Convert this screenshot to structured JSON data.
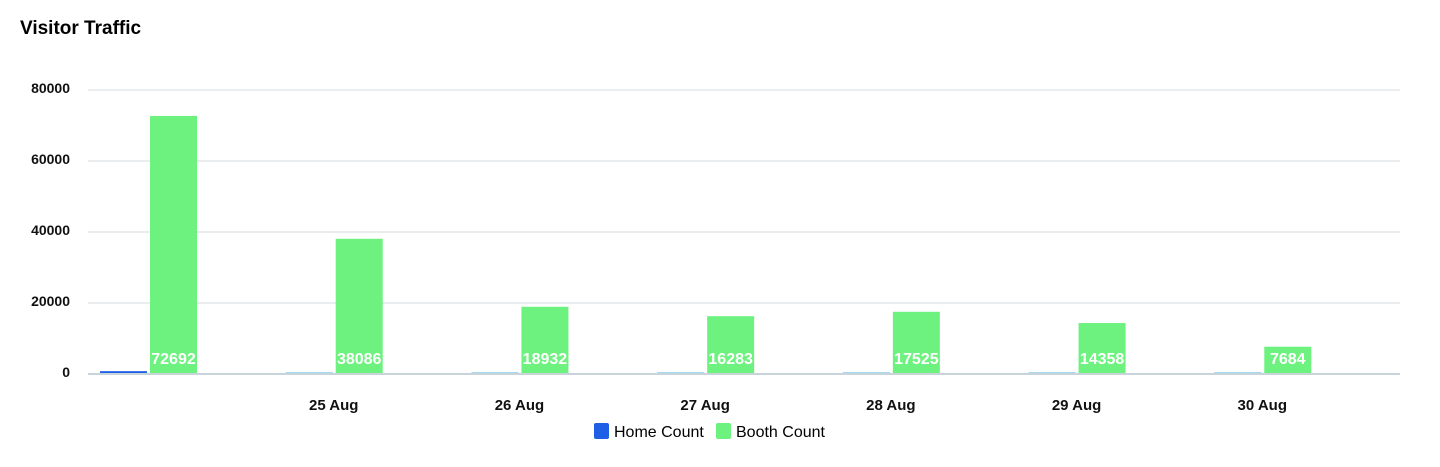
{
  "chart_data": {
    "type": "bar",
    "title": "Visitor Traffic",
    "categories": [
      "",
      "25 Aug",
      "26 Aug",
      "27 Aug",
      "28 Aug",
      "29 Aug",
      "30 Aug"
    ],
    "series": [
      {
        "name": "Home Count",
        "color": "#1f5fe6",
        "values": [
          800,
          400,
          300,
          200,
          250,
          200,
          150
        ]
      },
      {
        "name": "Booth Count",
        "color": "#6ef27f",
        "values": [
          72692,
          38086,
          18932,
          16283,
          17525,
          14358,
          7684
        ]
      }
    ],
    "data_labels": [
      "72692",
      "38086",
      "18932",
      "16283",
      "17525",
      "14358",
      "7684"
    ],
    "y_ticks": [
      "0",
      "20000",
      "40000",
      "60000",
      "80000"
    ],
    "ylim": [
      0,
      80000
    ],
    "grid": true,
    "legend_position": "bottom"
  }
}
